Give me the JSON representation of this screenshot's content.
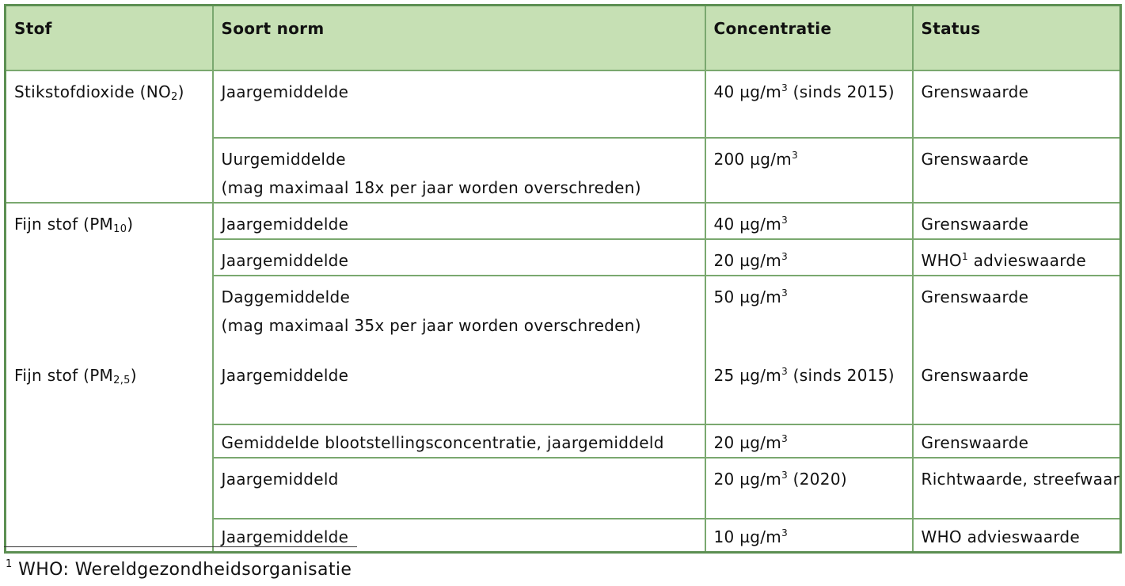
{
  "table": {
    "headers": {
      "stof": "Stof",
      "norm": "Soort norm",
      "concentratie": "Concentratie",
      "status": "Status"
    },
    "no2": {
      "stof_name": "Stikstofdioxide (NO",
      "stof_sub": "2",
      "stof_close": ")",
      "rows": [
        {
          "norm": "Jaargemiddelde",
          "conc_value": "40 µg/m",
          "conc_sup": "3",
          "conc_extra": " (sinds 2015)",
          "status": "Grenswaarde"
        },
        {
          "norm": "Uurgemiddelde",
          "norm_note": "(mag maximaal 18x per jaar worden overschreden)",
          "conc_value": "200 µg/m",
          "conc_sup": "3",
          "status": "Grenswaarde"
        }
      ]
    },
    "pm10": {
      "stof_name": "Fijn stof (PM",
      "stof_sub": "10",
      "stof_close": ")",
      "rows": [
        {
          "norm": "Jaargemiddelde",
          "conc_value": "40 µg/m",
          "conc_sup": "3",
          "status": "Grenswaarde"
        },
        {
          "norm": "Jaargemiddelde",
          "conc_value": "20 µg/m",
          "conc_sup": "3",
          "status_prefix": "WHO",
          "status_sup": "1",
          "status_suffix": " advieswaarde"
        },
        {
          "norm": "Daggemiddelde",
          "norm_note": "(mag maximaal 35x per jaar worden overschreden)",
          "conc_value": "50 µg/m",
          "conc_sup": "3",
          "status": "Grenswaarde"
        }
      ]
    },
    "pm25": {
      "stof_name": "Fijn stof (PM",
      "stof_sub": "2,5",
      "stof_close": ")",
      "rows": [
        {
          "norm": "Jaargemiddelde",
          "conc_value": "25 µg/m",
          "conc_sup": "3",
          "conc_extra": " (sinds 2015)",
          "status": "Grenswaarde"
        },
        {
          "norm": "Gemiddelde blootstellingsconcentratie, jaargemiddeld",
          "conc_value": "20 µg/m",
          "conc_sup": "3",
          "status": "Grenswaarde"
        },
        {
          "norm": "Jaargemiddeld",
          "conc_value": "20 µg/m",
          "conc_sup": "3",
          "conc_extra": " (2020)",
          "status": "Richtwaarde, streefwaarde"
        },
        {
          "norm": "Jaargemiddelde",
          "conc_value": "10 µg/m",
          "conc_sup": "3",
          "status": "WHO advieswaarde"
        }
      ]
    }
  },
  "footnote": {
    "number": "1",
    "text": " WHO: Wereldgezondheidsorganisatie"
  }
}
